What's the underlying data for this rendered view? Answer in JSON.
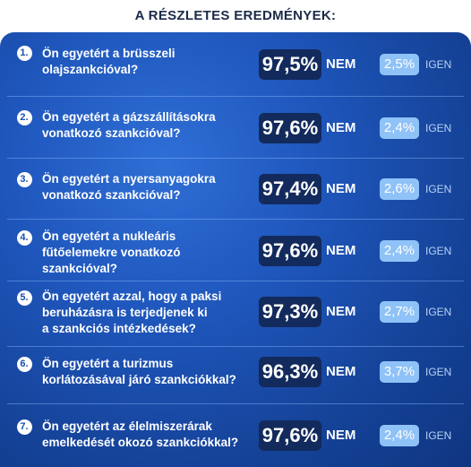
{
  "title": "A RÉSZLETES EREDMÉNYEK:",
  "labels": {
    "nem": "NEM",
    "igen": "IGEN"
  },
  "colors": {
    "panel_blue": "#1f57bd",
    "dark_box": "#122a5c",
    "light_box": "#8fc2f7"
  },
  "results": [
    {
      "number": "1.",
      "question": "Ön egyetért a brüsszeli\nolajszankcióval?",
      "nem_pct": "97,5%",
      "igen_pct": "2,5%"
    },
    {
      "number": "2.",
      "question": "Ön egyetért a gázszállításokra\nvonatkozó szankcióval?",
      "nem_pct": "97,6%",
      "igen_pct": "2,4%"
    },
    {
      "number": "3.",
      "question": "Ön egyetért a nyersanyagokra\nvonatkozó szankcióval?",
      "nem_pct": "97,4%",
      "igen_pct": "2,6%"
    },
    {
      "number": "4.",
      "question": "Ön egyetért a nukleáris\nfűtőelemekre vonatkozó\nszankcióval?",
      "nem_pct": "97,6%",
      "igen_pct": "2,4%"
    },
    {
      "number": "5.",
      "question": "Ön egyetért azzal, hogy a paksi\nberuházásra is terjedjenek ki\na szankciós intézkedések?",
      "nem_pct": "97,3%",
      "igen_pct": "2,7%"
    },
    {
      "number": "6.",
      "question": "Ön egyetért a turizmus\nkorlátozásával járó szankciókkal?",
      "nem_pct": "96,3%",
      "igen_pct": "3,7%"
    },
    {
      "number": "7.",
      "question": "Ön egyetért az élelmiszerárak\nemelkedését okozó szankciókkal?",
      "nem_pct": "97,6%",
      "igen_pct": "2,4%"
    }
  ]
}
